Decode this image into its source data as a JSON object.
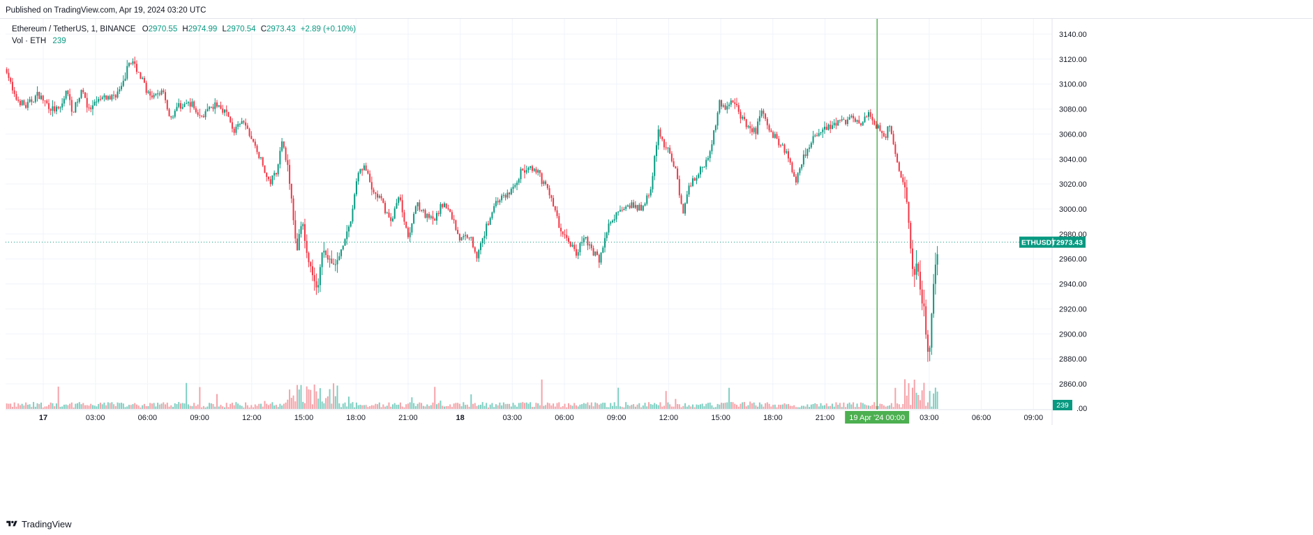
{
  "header": {
    "published": "Published on TradingView.com, Apr 19, 2024 03:20 UTC"
  },
  "legend": {
    "symbol": "Ethereum / TetherUS, 1, BINANCE",
    "o_label": "O",
    "o_value": "2970.55",
    "h_label": "H",
    "h_value": "2974.99",
    "l_label": "L",
    "l_value": "2970.54",
    "c_label": "C",
    "c_value": "2973.43",
    "change": "+2.89 (+0.10%)",
    "vol_label": "Vol · ETH",
    "vol_value": "239"
  },
  "footer": {
    "brand": "TradingView"
  },
  "colors": {
    "up": "#089981",
    "down": "#f23645",
    "crosshair": "#2e9e2e",
    "price_badge": "#089981",
    "vol_up": "#7fcfc2",
    "vol_down": "#f5a3a9",
    "grid": "#f0f3fa"
  },
  "chart_data": {
    "type": "candlestick",
    "symbol_badge": "ETHUSDT",
    "last_price": 2973.43,
    "last_price_label": "2973.43",
    "volume_badge": "239",
    "ylim": [
      2840,
      3150
    ],
    "y_ticks": [
      "3140.00",
      "3120.00",
      "3100.00",
      "3080.00",
      "3060.00",
      "3040.00",
      "3020.00",
      "3000.00",
      "2980.00",
      "2960.00",
      "2940.00",
      "2920.00",
      "2900.00",
      "2880.00",
      "2860.00"
    ],
    "y_tick_values": [
      3140,
      3120,
      3100,
      3080,
      3060,
      3040,
      3020,
      3000,
      2980,
      2960,
      2940,
      2920,
      2900,
      2880,
      2860
    ],
    "x_ticks": [
      {
        "label": "17",
        "hour": 0,
        "bold": true
      },
      {
        "label": "03:00",
        "hour": 3
      },
      {
        "label": "06:00",
        "hour": 6
      },
      {
        "label": "09:00",
        "hour": 9
      },
      {
        "label": "12:00",
        "hour": 12
      },
      {
        "label": "15:00",
        "hour": 15
      },
      {
        "label": "18:00",
        "hour": 18
      },
      {
        "label": "21:00",
        "hour": 21
      },
      {
        "label": "18",
        "hour": 24,
        "bold": true
      },
      {
        "label": "03:00",
        "hour": 27
      },
      {
        "label": "06:00",
        "hour": 30
      },
      {
        "label": "09:00",
        "hour": 33
      },
      {
        "label": "12:00",
        "hour": 36
      },
      {
        "label": "15:00",
        "hour": 39
      },
      {
        "label": "18:00",
        "hour": 42
      },
      {
        "label": "21:00",
        "hour": 45
      },
      {
        "label": "03:00",
        "hour": 51
      },
      {
        "label": "06:00",
        "hour": 54
      },
      {
        "label": "09:00",
        "hour": 57
      }
    ],
    "crosshair_hour": 48,
    "crosshair_label": "19 Apr '24  00:00",
    "x_range_hours": [
      -2.2,
      59
    ],
    "last_hour": 51.3,
    "price_path": [
      {
        "h": -2.1,
        "p": 3112
      },
      {
        "h": -1.7,
        "p": 3090
      },
      {
        "h": -1.0,
        "p": 3082
      },
      {
        "h": -0.3,
        "p": 3092
      },
      {
        "h": 0.5,
        "p": 3080
      },
      {
        "h": 1.0,
        "p": 3079
      },
      {
        "h": 1.3,
        "p": 3096
      },
      {
        "h": 1.7,
        "p": 3078
      },
      {
        "h": 2.3,
        "p": 3096
      },
      {
        "h": 2.6,
        "p": 3078
      },
      {
        "h": 3.3,
        "p": 3088
      },
      {
        "h": 4.0,
        "p": 3090
      },
      {
        "h": 4.5,
        "p": 3096
      },
      {
        "h": 5.0,
        "p": 3120
      },
      {
        "h": 5.4,
        "p": 3112
      },
      {
        "h": 5.8,
        "p": 3100
      },
      {
        "h": 6.2,
        "p": 3087
      },
      {
        "h": 6.9,
        "p": 3096
      },
      {
        "h": 7.3,
        "p": 3072
      },
      {
        "h": 7.7,
        "p": 3082
      },
      {
        "h": 8.5,
        "p": 3085
      },
      {
        "h": 9.0,
        "p": 3074
      },
      {
        "h": 9.5,
        "p": 3078
      },
      {
        "h": 10.0,
        "p": 3084
      },
      {
        "h": 10.5,
        "p": 3078
      },
      {
        "h": 11.0,
        "p": 3062
      },
      {
        "h": 11.5,
        "p": 3070
      },
      {
        "h": 12.0,
        "p": 3056
      },
      {
        "h": 12.5,
        "p": 3040
      },
      {
        "h": 13.0,
        "p": 3020
      },
      {
        "h": 13.4,
        "p": 3030
      },
      {
        "h": 13.8,
        "p": 3056
      },
      {
        "h": 14.1,
        "p": 3030
      },
      {
        "h": 14.3,
        "p": 3005
      },
      {
        "h": 14.6,
        "p": 2968
      },
      {
        "h": 14.9,
        "p": 2990
      },
      {
        "h": 15.3,
        "p": 2955
      },
      {
        "h": 15.8,
        "p": 2935
      },
      {
        "h": 16.1,
        "p": 2970
      },
      {
        "h": 16.5,
        "p": 2958
      },
      {
        "h": 16.9,
        "p": 2955
      },
      {
        "h": 17.3,
        "p": 2975
      },
      {
        "h": 17.7,
        "p": 2990
      },
      {
        "h": 18.1,
        "p": 3030
      },
      {
        "h": 18.5,
        "p": 3035
      },
      {
        "h": 18.9,
        "p": 3015
      },
      {
        "h": 19.4,
        "p": 3008
      },
      {
        "h": 20.0,
        "p": 2990
      },
      {
        "h": 20.5,
        "p": 3010
      },
      {
        "h": 21.0,
        "p": 2978
      },
      {
        "h": 21.5,
        "p": 3006
      },
      {
        "h": 22.0,
        "p": 2994
      },
      {
        "h": 22.5,
        "p": 2990
      },
      {
        "h": 23.0,
        "p": 3005
      },
      {
        "h": 23.5,
        "p": 2995
      },
      {
        "h": 24.0,
        "p": 2975
      },
      {
        "h": 24.5,
        "p": 2980
      },
      {
        "h": 25.0,
        "p": 2962
      },
      {
        "h": 25.5,
        "p": 2985
      },
      {
        "h": 26.0,
        "p": 3005
      },
      {
        "h": 26.5,
        "p": 3010
      },
      {
        "h": 27.0,
        "p": 3015
      },
      {
        "h": 27.5,
        "p": 3030
      },
      {
        "h": 28.0,
        "p": 3032
      },
      {
        "h": 28.5,
        "p": 3028
      },
      {
        "h": 28.9,
        "p": 3018
      },
      {
        "h": 29.3,
        "p": 3008
      },
      {
        "h": 29.7,
        "p": 2985
      },
      {
        "h": 30.2,
        "p": 2975
      },
      {
        "h": 30.7,
        "p": 2965
      },
      {
        "h": 31.2,
        "p": 2978
      },
      {
        "h": 31.5,
        "p": 2968
      },
      {
        "h": 32.0,
        "p": 2960
      },
      {
        "h": 32.5,
        "p": 2985
      },
      {
        "h": 33.0,
        "p": 2995
      },
      {
        "h": 33.6,
        "p": 3005
      },
      {
        "h": 34.2,
        "p": 3000
      },
      {
        "h": 34.6,
        "p": 3002
      },
      {
        "h": 35.0,
        "p": 3020
      },
      {
        "h": 35.4,
        "p": 3062
      },
      {
        "h": 35.8,
        "p": 3050
      },
      {
        "h": 36.2,
        "p": 3040
      },
      {
        "h": 36.5,
        "p": 3025
      },
      {
        "h": 36.8,
        "p": 2995
      },
      {
        "h": 37.2,
        "p": 3020
      },
      {
        "h": 37.8,
        "p": 3030
      },
      {
        "h": 38.2,
        "p": 3040
      },
      {
        "h": 38.6,
        "p": 3060
      },
      {
        "h": 38.9,
        "p": 3085
      },
      {
        "h": 39.3,
        "p": 3080
      },
      {
        "h": 39.7,
        "p": 3088
      },
      {
        "h": 40.1,
        "p": 3075
      },
      {
        "h": 40.5,
        "p": 3066
      },
      {
        "h": 41.0,
        "p": 3062
      },
      {
        "h": 41.3,
        "p": 3078
      },
      {
        "h": 41.7,
        "p": 3068
      },
      {
        "h": 42.2,
        "p": 3055
      },
      {
        "h": 42.6,
        "p": 3050
      },
      {
        "h": 43.0,
        "p": 3038
      },
      {
        "h": 43.3,
        "p": 3022
      },
      {
        "h": 43.7,
        "p": 3040
      },
      {
        "h": 44.2,
        "p": 3055
      },
      {
        "h": 44.8,
        "p": 3062
      },
      {
        "h": 45.4,
        "p": 3066
      },
      {
        "h": 46.0,
        "p": 3070
      },
      {
        "h": 46.5,
        "p": 3072
      },
      {
        "h": 47.0,
        "p": 3068
      },
      {
        "h": 47.5,
        "p": 3075
      },
      {
        "h": 48.0,
        "p": 3066
      },
      {
        "h": 48.4,
        "p": 3055
      },
      {
        "h": 48.7,
        "p": 3068
      },
      {
        "h": 49.0,
        "p": 3050
      },
      {
        "h": 49.3,
        "p": 3028
      },
      {
        "h": 49.7,
        "p": 3010
      },
      {
        "h": 49.9,
        "p": 2975
      },
      {
        "h": 50.1,
        "p": 2945
      },
      {
        "h": 50.3,
        "p": 2958
      },
      {
        "h": 50.5,
        "p": 2930
      },
      {
        "h": 50.7,
        "p": 2920
      },
      {
        "h": 50.85,
        "p": 2895
      },
      {
        "h": 51.0,
        "p": 2880
      },
      {
        "h": 51.2,
        "p": 2935
      },
      {
        "h": 51.35,
        "p": 2952
      },
      {
        "h": 51.55,
        "p": 2973
      }
    ]
  }
}
